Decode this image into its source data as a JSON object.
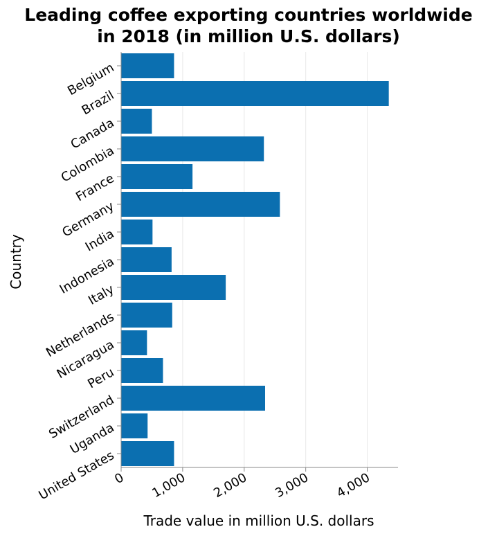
{
  "chart_data": {
    "type": "bar",
    "orientation": "horizontal",
    "title_lines": [
      "Leading coffee exporting countries worldwide",
      "in 2018 (in million U.S. dollars)"
    ],
    "xlabel": "Trade value in million U.S. dollars",
    "ylabel": "Country",
    "xlim": [
      0,
      4500
    ],
    "xticks": [
      0,
      1000,
      2000,
      3000,
      4000
    ],
    "xtick_labels": [
      "0",
      "1,000",
      "2,000",
      "3,000",
      "4,000"
    ],
    "grid": true,
    "bar_color": "#0b6fb0",
    "categories": [
      "Belgium",
      "Brazil",
      "Canada",
      "Colombia",
      "France",
      "Germany",
      "India",
      "Indonesia",
      "Italy",
      "Netherlands",
      "Nicaragua",
      "Peru",
      "Switzerland",
      "Uganda",
      "United States"
    ],
    "values": [
      860,
      4350,
      500,
      2320,
      1160,
      2580,
      510,
      820,
      1700,
      830,
      420,
      680,
      2340,
      430,
      860
    ]
  }
}
